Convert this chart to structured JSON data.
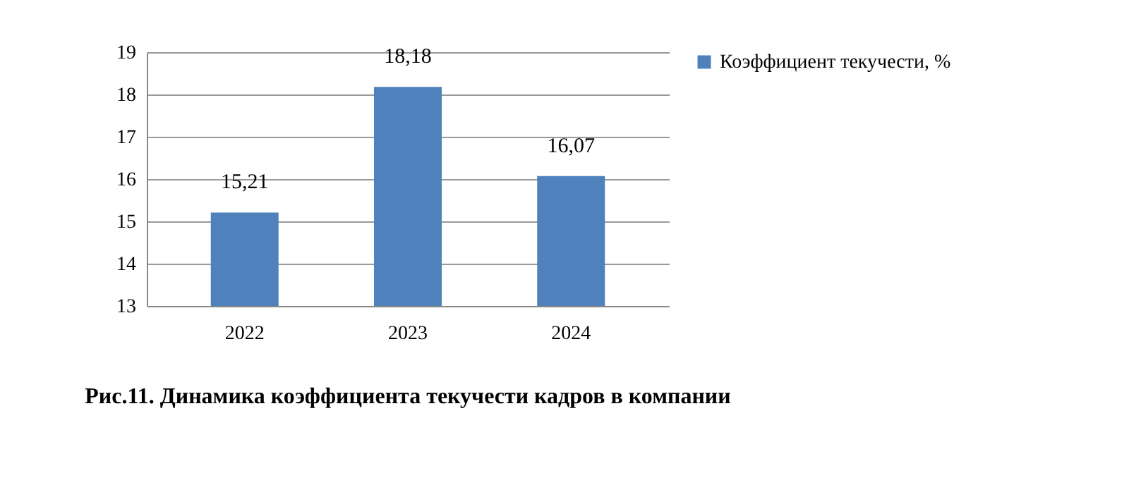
{
  "chart_data": {
    "type": "bar",
    "title": "Рис.11. Динамика коэффициента текучести кадров в компании",
    "categories": [
      "2022",
      "2023",
      "2024"
    ],
    "series": [
      {
        "name": "Коэффициент текучести, %",
        "color": "#4f81bd",
        "values": [
          15.21,
          18.18,
          16.07
        ],
        "value_labels": [
          "15,21",
          "18,18",
          "16,07"
        ]
      }
    ],
    "ylim": [
      13,
      19
    ],
    "yticks": [
      13,
      14,
      15,
      16,
      17,
      18,
      19
    ],
    "grid": "y",
    "legend": "right"
  }
}
